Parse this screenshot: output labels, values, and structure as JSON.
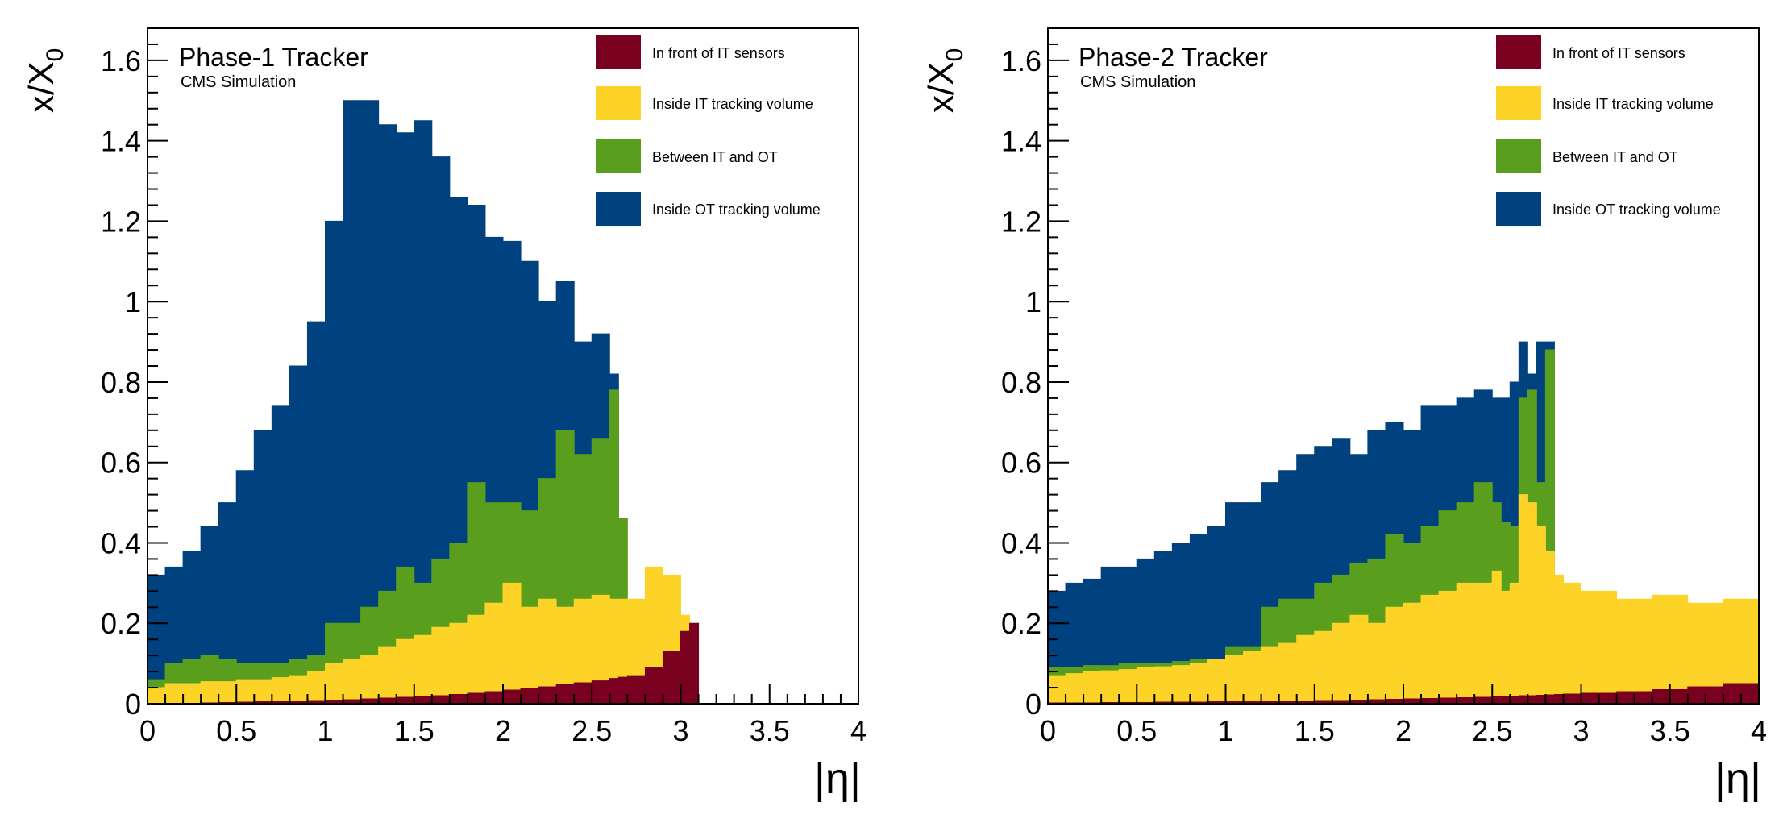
{
  "colors": {
    "front_it": "#7a0020",
    "inside_it": "#fdd328",
    "between": "#5a9e1e",
    "inside_ot": "#00417f"
  },
  "legend": [
    {
      "key": "front_it",
      "label": "In front of IT sensors"
    },
    {
      "key": "inside_it",
      "label": "Inside IT tracking volume"
    },
    {
      "key": "between",
      "label": "Between IT and OT"
    },
    {
      "key": "inside_ot",
      "label": "Inside OT tracking volume"
    }
  ],
  "chart_data": [
    {
      "type": "area",
      "title": "Phase-1 Tracker",
      "subtitle": "CMS Simulation",
      "xlabel": "|η|",
      "ylabel": "x/X",
      "ylabel_sub": "0",
      "xlim": [
        0,
        4
      ],
      "ylim": [
        0,
        1.68
      ],
      "x_ticks": [
        "0",
        "0.5",
        "1",
        "1.5",
        "2",
        "2.5",
        "3",
        "3.5",
        "4"
      ],
      "y_ticks": [
        "0",
        "0.2",
        "0.4",
        "0.6",
        "0.8",
        "1",
        "1.2",
        "1.4",
        "1.6"
      ],
      "eta": [
        0,
        0.1,
        0.2,
        0.3,
        0.4,
        0.5,
        0.6,
        0.7,
        0.8,
        0.9,
        1.0,
        1.1,
        1.2,
        1.3,
        1.4,
        1.5,
        1.6,
        1.7,
        1.8,
        1.9,
        2.0,
        2.1,
        2.2,
        2.3,
        2.4,
        2.5,
        2.6,
        2.65,
        2.7,
        2.8,
        2.9,
        3.0,
        3.05,
        3.1
      ],
      "series": [
        {
          "name": "In front of IT sensors",
          "key": "front_it",
          "cumulative": [
            0,
            0,
            0.001,
            0.002,
            0.003,
            0.004,
            0.005,
            0.006,
            0.007,
            0.008,
            0.009,
            0.01,
            0.012,
            0.014,
            0.016,
            0.018,
            0.02,
            0.023,
            0.026,
            0.03,
            0.034,
            0.038,
            0.042,
            0.047,
            0.052,
            0.057,
            0.063,
            0.066,
            0.07,
            0.09,
            0.13,
            0.18,
            0.2,
            0
          ]
        },
        {
          "name": "Inside IT tracking volume",
          "key": "inside_it",
          "cumulative": [
            0.04,
            0.05,
            0.05,
            0.055,
            0.055,
            0.06,
            0.06,
            0.065,
            0.07,
            0.08,
            0.1,
            0.11,
            0.12,
            0.14,
            0.16,
            0.17,
            0.19,
            0.2,
            0.22,
            0.25,
            0.3,
            0.24,
            0.26,
            0.24,
            0.26,
            0.27,
            0.26,
            0.26,
            0.26,
            0.34,
            0.32,
            0.22,
            0.2,
            0
          ]
        },
        {
          "name": "Between IT and OT",
          "key": "between",
          "cumulative": [
            0.06,
            0.1,
            0.11,
            0.12,
            0.11,
            0.1,
            0.1,
            0.1,
            0.11,
            0.12,
            0.2,
            0.2,
            0.24,
            0.28,
            0.34,
            0.3,
            0.36,
            0.4,
            0.55,
            0.5,
            0.5,
            0.48,
            0.56,
            0.68,
            0.62,
            0.66,
            0.78,
            0.46,
            0,
            0,
            0,
            0,
            0,
            0
          ]
        },
        {
          "name": "Inside OT tracking volume",
          "key": "inside_ot",
          "cumulative": [
            0.32,
            0.34,
            0.38,
            0.44,
            0.5,
            0.58,
            0.68,
            0.74,
            0.84,
            0.95,
            1.2,
            1.5,
            1.5,
            1.44,
            1.42,
            1.45,
            1.36,
            1.26,
            1.24,
            1.16,
            1.15,
            1.1,
            1.0,
            1.05,
            0.9,
            0.92,
            0.82,
            0,
            0,
            0,
            0,
            0,
            0,
            0
          ]
        }
      ]
    },
    {
      "type": "area",
      "title": "Phase-2 Tracker",
      "subtitle": "CMS Simulation",
      "xlabel": "|η|",
      "ylabel": "x/X",
      "ylabel_sub": "0",
      "xlim": [
        0,
        4
      ],
      "ylim": [
        0,
        1.68
      ],
      "x_ticks": [
        "0",
        "0.5",
        "1",
        "1.5",
        "2",
        "2.5",
        "3",
        "3.5",
        "4"
      ],
      "y_ticks": [
        "0",
        "0.2",
        "0.4",
        "0.6",
        "0.8",
        "1",
        "1.2",
        "1.4",
        "1.6"
      ],
      "eta": [
        0,
        0.1,
        0.2,
        0.3,
        0.4,
        0.5,
        0.6,
        0.7,
        0.8,
        0.9,
        1.0,
        1.1,
        1.2,
        1.3,
        1.4,
        1.5,
        1.6,
        1.7,
        1.8,
        1.9,
        2.0,
        2.1,
        2.2,
        2.3,
        2.4,
        2.5,
        2.55,
        2.6,
        2.65,
        2.7,
        2.75,
        2.8,
        2.85,
        2.9,
        3.0,
        3.2,
        3.4,
        3.6,
        3.8,
        4.0
      ],
      "series": [
        {
          "name": "In front of IT sensors",
          "key": "front_it",
          "cumulative": [
            0.002,
            0.002,
            0.002,
            0.003,
            0.003,
            0.003,
            0.004,
            0.004,
            0.004,
            0.005,
            0.005,
            0.006,
            0.006,
            0.007,
            0.007,
            0.008,
            0.008,
            0.009,
            0.01,
            0.011,
            0.012,
            0.013,
            0.014,
            0.015,
            0.016,
            0.017,
            0.018,
            0.019,
            0.02,
            0.02,
            0.021,
            0.022,
            0.023,
            0.024,
            0.026,
            0.03,
            0.035,
            0.042,
            0.05,
            0.06
          ]
        },
        {
          "name": "Inside IT tracking volume",
          "key": "inside_it",
          "cumulative": [
            0.07,
            0.075,
            0.08,
            0.082,
            0.085,
            0.09,
            0.092,
            0.095,
            0.1,
            0.11,
            0.12,
            0.13,
            0.14,
            0.15,
            0.17,
            0.18,
            0.2,
            0.22,
            0.2,
            0.24,
            0.25,
            0.27,
            0.28,
            0.3,
            0.3,
            0.33,
            0.28,
            0.3,
            0.52,
            0.5,
            0.44,
            0.38,
            0.32,
            0.3,
            0.28,
            0.26,
            0.27,
            0.25,
            0.26,
            0.24
          ]
        },
        {
          "name": "Between IT and OT",
          "key": "between",
          "cumulative": [
            0.09,
            0.09,
            0.095,
            0.095,
            0.1,
            0.1,
            0.1,
            0.105,
            0.11,
            0.11,
            0.14,
            0.14,
            0.24,
            0.26,
            0.26,
            0.3,
            0.32,
            0.35,
            0.36,
            0.42,
            0.4,
            0.44,
            0.48,
            0.5,
            0.55,
            0.5,
            0.45,
            0.44,
            0.76,
            0.78,
            0.55,
            0.88,
            0,
            0,
            0,
            0,
            0,
            0,
            0,
            0
          ]
        },
        {
          "name": "Inside OT tracking volume",
          "key": "inside_ot",
          "cumulative": [
            0.28,
            0.3,
            0.31,
            0.34,
            0.34,
            0.36,
            0.38,
            0.4,
            0.42,
            0.44,
            0.5,
            0.5,
            0.55,
            0.58,
            0.62,
            0.64,
            0.66,
            0.62,
            0.68,
            0.7,
            0.68,
            0.74,
            0.74,
            0.76,
            0.78,
            0.76,
            0.76,
            0.8,
            0.9,
            0.82,
            0.9,
            0.9,
            0,
            0,
            0,
            0,
            0,
            0,
            0,
            0
          ]
        }
      ]
    }
  ]
}
